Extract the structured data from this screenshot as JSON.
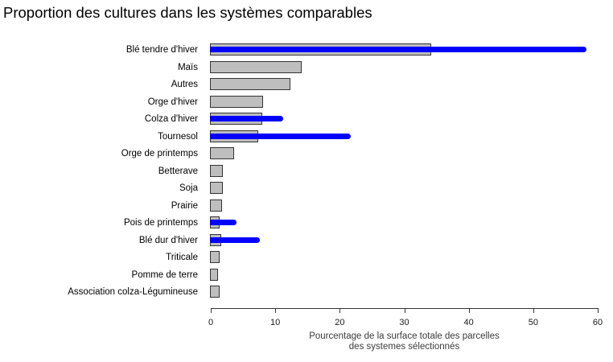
{
  "chart_data": {
    "type": "bar",
    "orientation": "horizontal",
    "title": "Proportion des cultures dans les systèmes comparables",
    "xlabel_line1": "Pourcentage de la surface totale des parcelles",
    "xlabel_line2": "des systemes sélectionnés",
    "xlim": [
      0,
      60
    ],
    "xticks": [
      0,
      10,
      20,
      30,
      40,
      50,
      60
    ],
    "grid": false,
    "legend": "none",
    "categories": [
      "Blé tendre d'hiver",
      "Maïs",
      "Autres",
      "Orge d'hiver",
      "Colza d'hiver",
      "Tournesol",
      "Orge de printemps",
      "Betterave",
      "Soja",
      "Prairie",
      "Pois de printemps",
      "Blé dur d'hiver",
      "Triticale",
      "Pomme de terre",
      "Association colza-Légumineuse"
    ],
    "series": [
      {
        "name": "gray",
        "color": "#BEBEBE",
        "border_color": "#333333",
        "values": [
          34,
          14,
          12.2,
          8,
          7.8,
          7.2,
          3.5,
          1.8,
          1.8,
          1.6,
          1.3,
          1.5,
          1.2,
          1.0,
          1.2
        ]
      },
      {
        "name": "blue",
        "color": "#0000FF",
        "values": [
          58,
          null,
          null,
          null,
          11,
          21.5,
          null,
          null,
          null,
          null,
          3.7,
          7.4,
          null,
          null,
          null
        ]
      }
    ]
  }
}
